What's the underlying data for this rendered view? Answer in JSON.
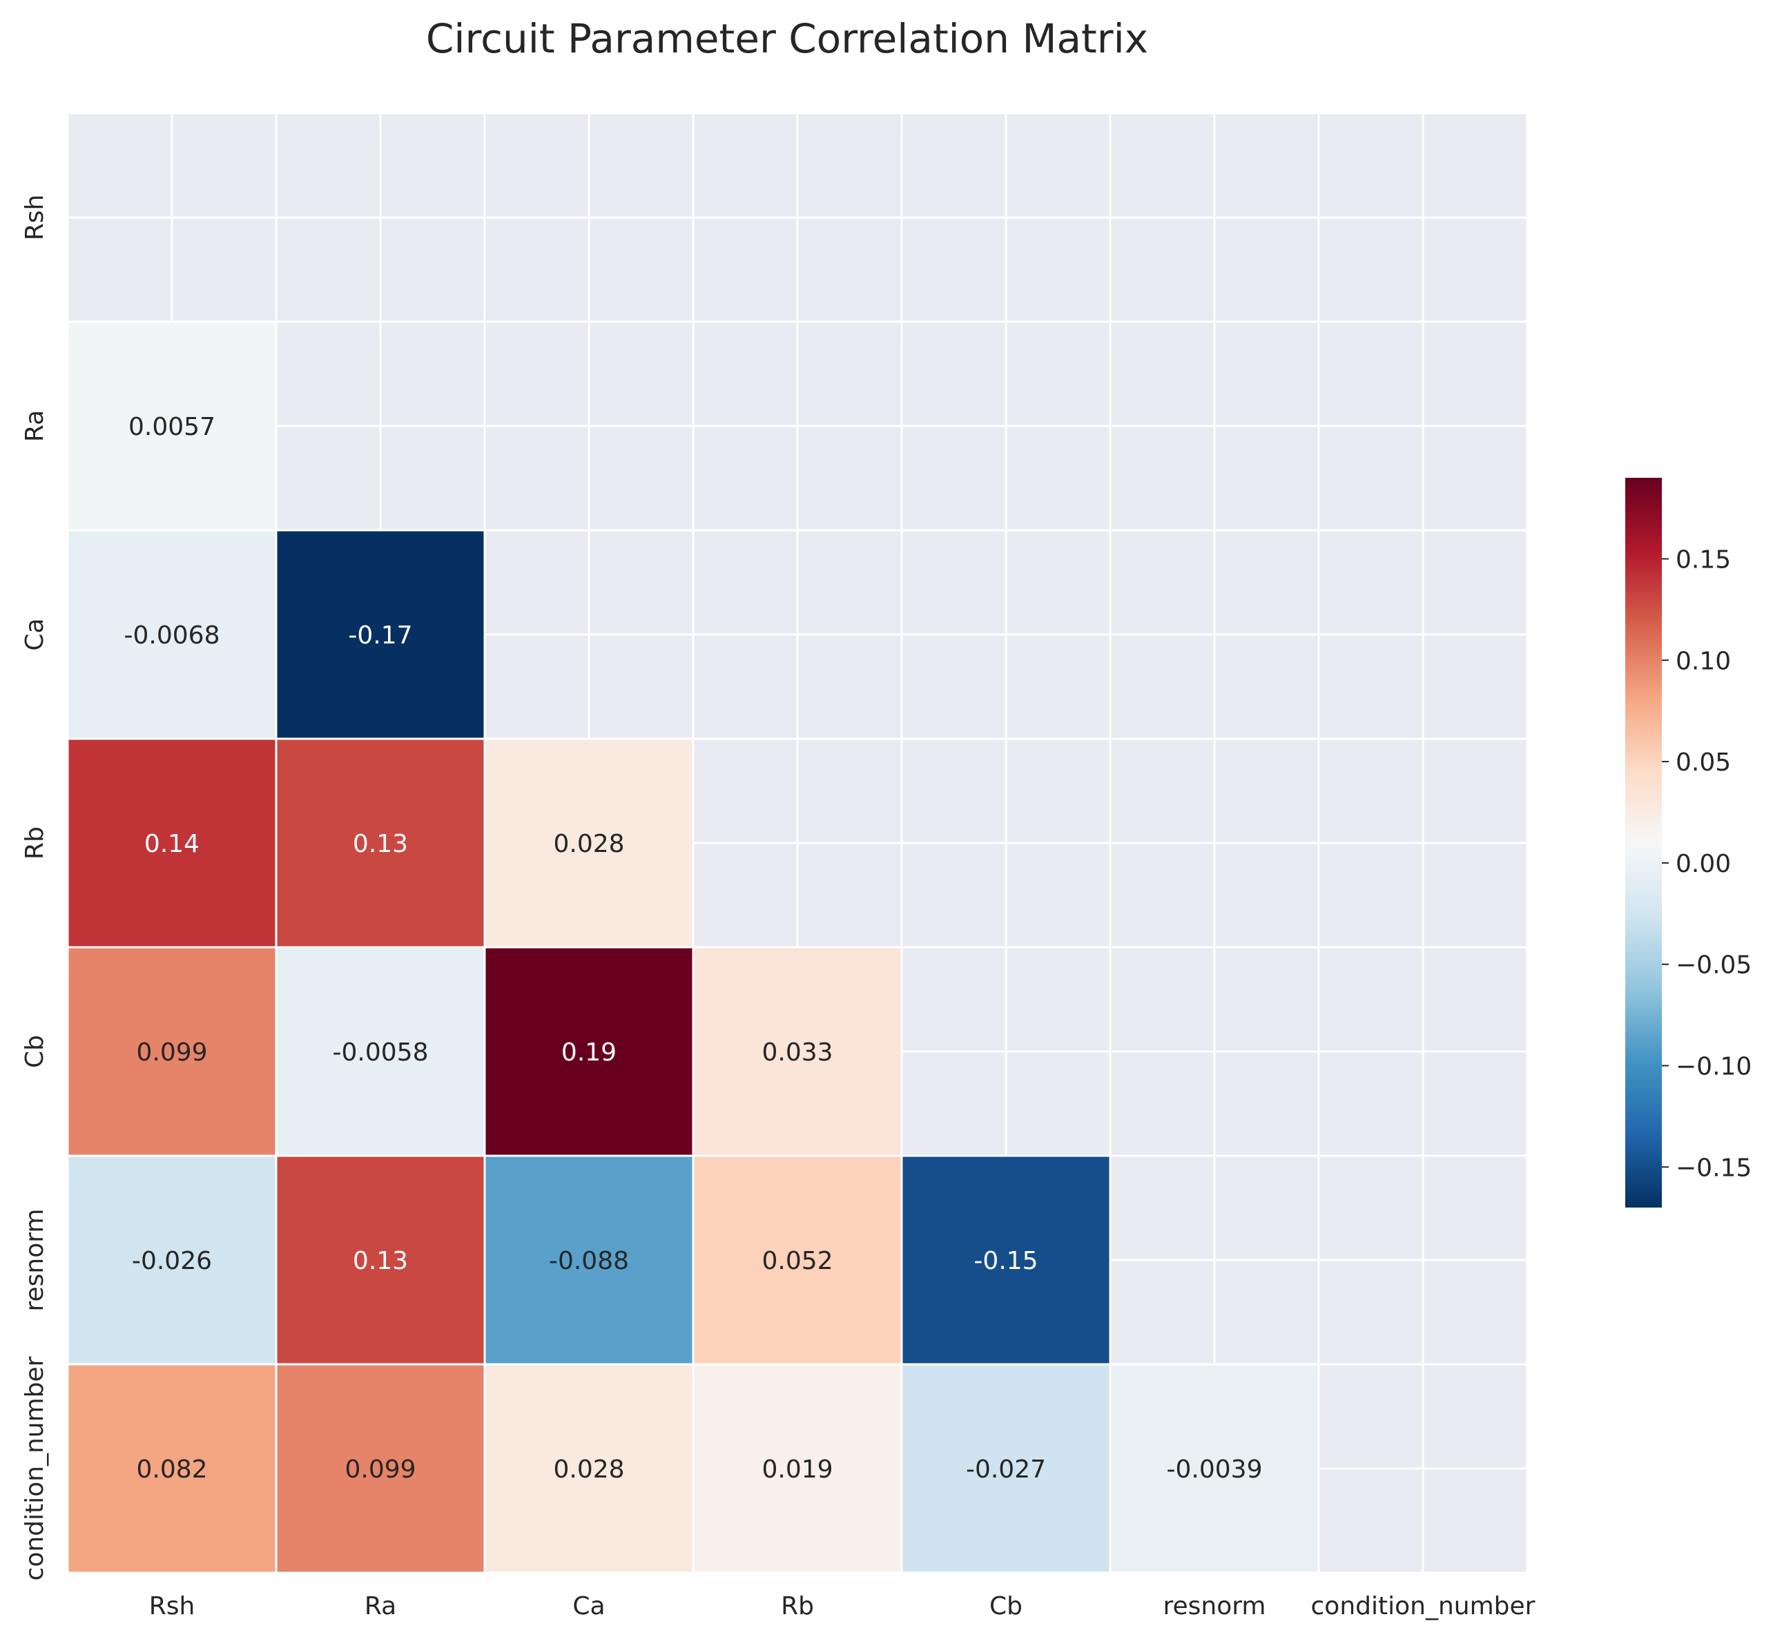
{
  "chart_data": {
    "type": "heatmap",
    "title": "Circuit Parameter Correlation Matrix",
    "variables": [
      "Rsh",
      "Ra",
      "Ca",
      "Rb",
      "Cb",
      "resnorm",
      "condition_number"
    ],
    "mask": "upper-triangle-including-diagonal",
    "cells": [
      {
        "row": "Ra",
        "col": "Rsh",
        "value": 0.0057,
        "label": "0.0057"
      },
      {
        "row": "Ca",
        "col": "Rsh",
        "value": -0.0068,
        "label": "-0.0068"
      },
      {
        "row": "Ca",
        "col": "Ra",
        "value": -0.17,
        "label": "-0.17"
      },
      {
        "row": "Rb",
        "col": "Rsh",
        "value": 0.14,
        "label": "0.14"
      },
      {
        "row": "Rb",
        "col": "Ra",
        "value": 0.13,
        "label": "0.13"
      },
      {
        "row": "Rb",
        "col": "Ca",
        "value": 0.028,
        "label": "0.028"
      },
      {
        "row": "Cb",
        "col": "Rsh",
        "value": 0.099,
        "label": "0.099"
      },
      {
        "row": "Cb",
        "col": "Ra",
        "value": -0.0058,
        "label": "-0.0058"
      },
      {
        "row": "Cb",
        "col": "Ca",
        "value": 0.19,
        "label": "0.19"
      },
      {
        "row": "Cb",
        "col": "Rb",
        "value": 0.033,
        "label": "0.033"
      },
      {
        "row": "resnorm",
        "col": "Rsh",
        "value": -0.026,
        "label": "-0.026"
      },
      {
        "row": "resnorm",
        "col": "Ra",
        "value": 0.13,
        "label": "0.13"
      },
      {
        "row": "resnorm",
        "col": "Ca",
        "value": -0.088,
        "label": "-0.088"
      },
      {
        "row": "resnorm",
        "col": "Rb",
        "value": 0.052,
        "label": "0.052"
      },
      {
        "row": "resnorm",
        "col": "Cb",
        "value": -0.15,
        "label": "-0.15"
      },
      {
        "row": "condition_number",
        "col": "Rsh",
        "value": 0.082,
        "label": "0.082"
      },
      {
        "row": "condition_number",
        "col": "Ra",
        "value": 0.099,
        "label": "0.099"
      },
      {
        "row": "condition_number",
        "col": "Ca",
        "value": 0.028,
        "label": "0.028"
      },
      {
        "row": "condition_number",
        "col": "Rb",
        "value": 0.019,
        "label": "0.019"
      },
      {
        "row": "condition_number",
        "col": "Cb",
        "value": -0.027,
        "label": "-0.027"
      },
      {
        "row": "condition_number",
        "col": "resnorm",
        "value": -0.0039,
        "label": "-0.0039"
      }
    ],
    "colorbar": {
      "colormap": "RdBu_r",
      "range": [
        -0.17,
        0.19
      ],
      "ticks": [
        0.15,
        0.1,
        0.05,
        0.0,
        -0.05,
        -0.1,
        -0.15
      ],
      "tick_labels": [
        "0.15",
        "0.10",
        "0.05",
        "0.00",
        "−0.05",
        "−0.10",
        "−0.15"
      ]
    },
    "grid": true,
    "background_color": "#eaeaf2",
    "grid_color": "#ffffff"
  }
}
